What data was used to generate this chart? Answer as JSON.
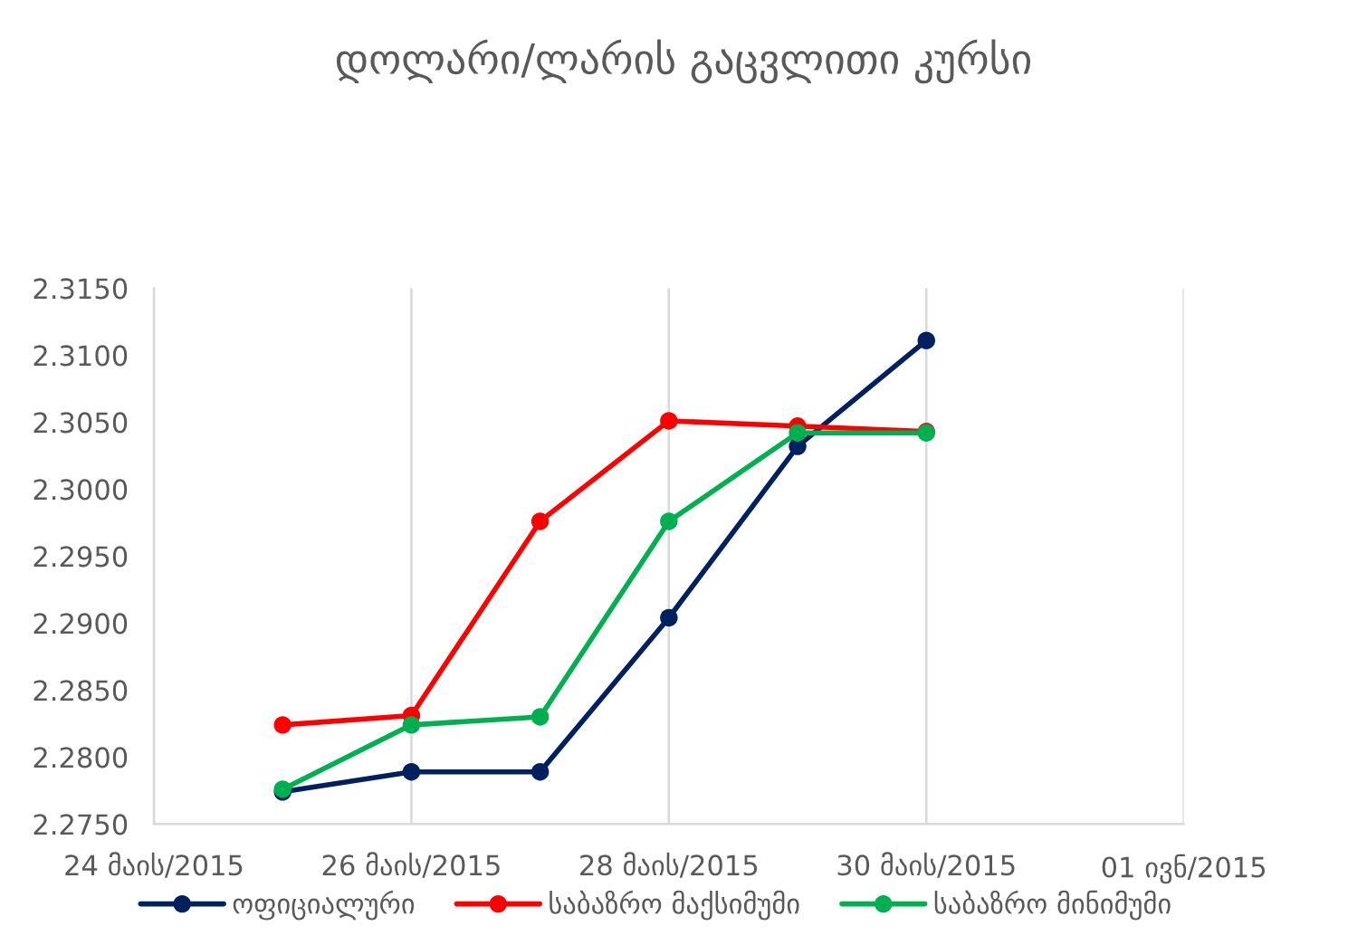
{
  "chart_data": {
    "type": "line",
    "title": "დოლარი/ლარის გაცვლითი კურსი",
    "x": [
      "2015-05-25",
      "2015-05-26",
      "2015-05-27",
      "2015-05-28",
      "2015-05-29",
      "2015-05-30"
    ],
    "series": [
      {
        "name": "ოფიციალური",
        "color": "#002060",
        "values": [
          2.2774,
          2.2789,
          2.2789,
          2.2904,
          2.3032,
          2.3111
        ]
      },
      {
        "name": "საბაზრო მაქსიმუმი",
        "color": "#ff0000",
        "values": [
          2.2824,
          2.2831,
          2.2976,
          2.3051,
          2.3047,
          2.3043
        ]
      },
      {
        "name": "საბაზრო მინიმუმი",
        "color": "#00b050",
        "values": [
          2.2776,
          2.2824,
          2.283,
          2.2976,
          2.3042,
          2.3042
        ]
      }
    ],
    "xlim": [
      "2015-05-24",
      "2015-06-01"
    ],
    "xticks": [
      {
        "value": "2015-05-24",
        "label": "24 მაის/2015"
      },
      {
        "value": "2015-05-26",
        "label": "26 მაის/2015"
      },
      {
        "value": "2015-05-28",
        "label": "28 მაის/2015"
      },
      {
        "value": "2015-05-30",
        "label": "30 მაის/2015"
      },
      {
        "value": "2015-06-01",
        "label": "01 ივნ/2015"
      }
    ],
    "ylim": [
      2.275,
      2.315
    ],
    "yticks": [
      {
        "value": 2.275,
        "label": "2.2750"
      },
      {
        "value": 2.28,
        "label": "2.2800"
      },
      {
        "value": 2.285,
        "label": "2.2850"
      },
      {
        "value": 2.29,
        "label": "2.2900"
      },
      {
        "value": 2.295,
        "label": "2.2950"
      },
      {
        "value": 2.3,
        "label": "2.3000"
      },
      {
        "value": 2.305,
        "label": "2.3050"
      },
      {
        "value": 2.31,
        "label": "2.3100"
      },
      {
        "value": 2.315,
        "label": "2.3150"
      }
    ],
    "grid": "x",
    "legend": "bottom",
    "marker": "circle",
    "line_style": "solid"
  }
}
